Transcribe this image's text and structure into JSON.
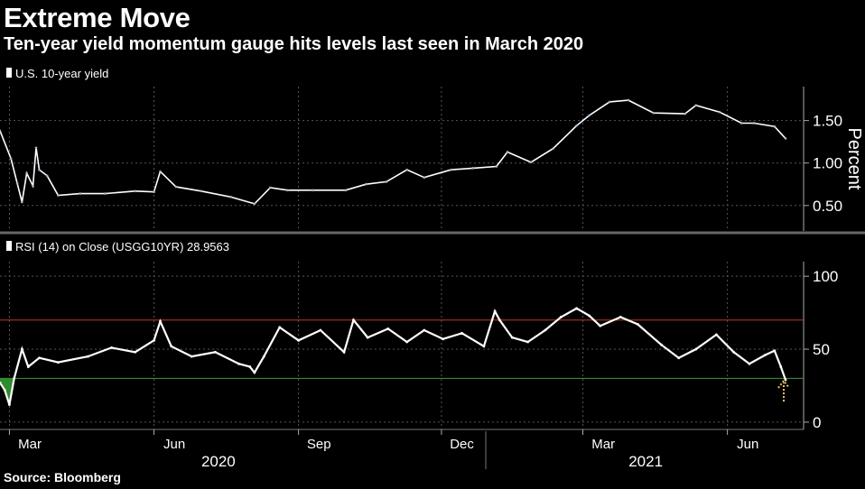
{
  "title": "Extreme Move",
  "subtitle": "Ten-year yield momentum gauge hits levels last seen in March 2020",
  "source": "Source: Bloomberg",
  "chart_data": [
    {
      "type": "line",
      "legend": "U.S. 10-year yield",
      "ylabel": "Percent",
      "yticks": [
        "0.50",
        "1.00",
        "1.50"
      ],
      "ylim": [
        0.2,
        1.9
      ],
      "series": [
        {
          "name": "U.S. 10-year yield",
          "color": "#ffffff",
          "x": [
            "2020-02-24",
            "2020-03-02",
            "2020-03-06",
            "2020-03-09",
            "2020-03-12",
            "2020-03-16",
            "2020-03-18",
            "2020-03-20",
            "2020-03-25",
            "2020-04-01",
            "2020-04-15",
            "2020-05-01",
            "2020-05-20",
            "2020-06-01",
            "2020-06-05",
            "2020-06-15",
            "2020-07-01",
            "2020-07-20",
            "2020-08-04",
            "2020-08-14",
            "2020-08-25",
            "2020-09-10",
            "2020-10-01",
            "2020-10-14",
            "2020-10-27",
            "2020-11-09",
            "2020-11-20",
            "2020-12-07",
            "2020-12-21",
            "2021-01-05",
            "2021-01-12",
            "2021-01-27",
            "2021-02-10",
            "2021-02-25",
            "2021-03-05",
            "2021-03-18",
            "2021-03-30",
            "2021-04-15",
            "2021-05-05",
            "2021-05-12",
            "2021-05-27",
            "2021-06-10",
            "2021-06-18",
            "2021-07-01",
            "2021-07-08"
          ],
          "y": [
            1.38,
            1.05,
            0.76,
            0.54,
            0.88,
            0.73,
            1.18,
            0.92,
            0.85,
            0.62,
            0.64,
            0.64,
            0.67,
            0.66,
            0.9,
            0.72,
            0.67,
            0.6,
            0.52,
            0.71,
            0.68,
            0.68,
            0.68,
            0.75,
            0.78,
            0.92,
            0.83,
            0.92,
            0.94,
            0.96,
            1.13,
            1.01,
            1.17,
            1.44,
            1.56,
            1.72,
            1.74,
            1.59,
            1.58,
            1.68,
            1.6,
            1.47,
            1.47,
            1.43,
            1.29
          ]
        }
      ]
    },
    {
      "type": "line",
      "legend": "RSI (14)  on Close (USGG10YR) 28.9563",
      "yticks": [
        "0",
        "50",
        "100"
      ],
      "ylim": [
        -5,
        110
      ],
      "reference_lines": [
        70,
        30
      ],
      "xticks": [
        "Mar",
        "Jun",
        "Sep",
        "Dec",
        "Mar",
        "Jun"
      ],
      "year_labels": [
        "2020",
        "2021"
      ],
      "series": [
        {
          "name": "RSI (14)",
          "color": "#ffffff",
          "x": [
            "2020-02-24",
            "2020-02-27",
            "2020-03-01",
            "2020-03-04",
            "2020-03-09",
            "2020-03-13",
            "2020-03-20",
            "2020-04-01",
            "2020-04-20",
            "2020-05-05",
            "2020-05-20",
            "2020-06-01",
            "2020-06-05",
            "2020-06-12",
            "2020-06-25",
            "2020-07-10",
            "2020-07-25",
            "2020-08-01",
            "2020-08-04",
            "2020-08-10",
            "2020-08-20",
            "2020-09-01",
            "2020-09-15",
            "2020-09-30",
            "2020-10-06",
            "2020-10-15",
            "2020-10-28",
            "2020-11-09",
            "2020-11-20",
            "2020-12-02",
            "2020-12-14",
            "2020-12-28",
            "2021-01-04",
            "2021-01-07",
            "2021-01-15",
            "2021-01-25",
            "2021-02-05",
            "2021-02-15",
            "2021-02-25",
            "2021-03-05",
            "2021-03-12",
            "2021-03-25",
            "2021-04-05",
            "2021-04-20",
            "2021-05-01",
            "2021-05-12",
            "2021-05-25",
            "2021-06-05",
            "2021-06-15",
            "2021-06-25",
            "2021-07-01",
            "2021-07-05",
            "2021-07-08"
          ],
          "y": [
            27,
            22,
            12,
            30,
            50,
            38,
            44,
            41,
            45,
            51,
            48,
            56,
            69,
            52,
            45,
            48,
            40,
            38,
            34,
            45,
            65,
            56,
            63,
            48,
            70,
            58,
            64,
            55,
            63,
            57,
            61,
            52,
            76,
            70,
            58,
            55,
            63,
            72,
            78,
            73,
            66,
            72,
            67,
            53,
            44,
            50,
            60,
            48,
            40,
            46,
            49,
            38,
            29
          ]
        }
      ]
    }
  ]
}
